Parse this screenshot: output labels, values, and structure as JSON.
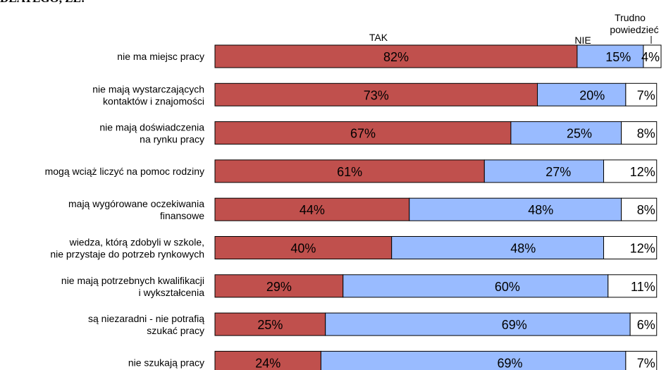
{
  "heading": "DLATEGO, ŻE:",
  "chart_data": {
    "type": "bar",
    "orientation": "horizontal",
    "stacked": true,
    "percent": true,
    "categories": [
      [
        "nie ma miejsc pracy"
      ],
      [
        "nie mają wystarczających",
        "kontaktów i znajomości"
      ],
      [
        "nie mają doświadczenia",
        "na rynku pracy"
      ],
      [
        "mogą wciąż liczyć na pomoc rodziny"
      ],
      [
        "mają wygórowane oczekiwania",
        "finansowe"
      ],
      [
        "wiedza, którą zdobyli w szkole,",
        "nie przystaje do potrzeb rynkowych"
      ],
      [
        "nie mają potrzebnych kwalifikacji",
        "i wykształcenia"
      ],
      [
        "są niezaradni - nie potrafią",
        "szukać pracy"
      ],
      [
        "nie szukają pracy"
      ]
    ],
    "series": [
      {
        "name": "TAK",
        "color": "#c0504d",
        "values": [
          82,
          73,
          67,
          61,
          44,
          40,
          29,
          25,
          24
        ]
      },
      {
        "name": "NIE",
        "color": "#99bbff",
        "values": [
          15,
          20,
          25,
          27,
          48,
          48,
          60,
          69,
          69
        ]
      },
      {
        "name": "Trudno powiedzieć",
        "color": "#ffffff",
        "values": [
          4,
          7,
          8,
          12,
          8,
          12,
          11,
          6,
          7
        ]
      }
    ],
    "legend_labels": [
      "TAK",
      "NIE",
      "Trudno",
      "powiedzieć"
    ],
    "value_suffix": "%",
    "xlim": [
      0,
      101
    ]
  }
}
